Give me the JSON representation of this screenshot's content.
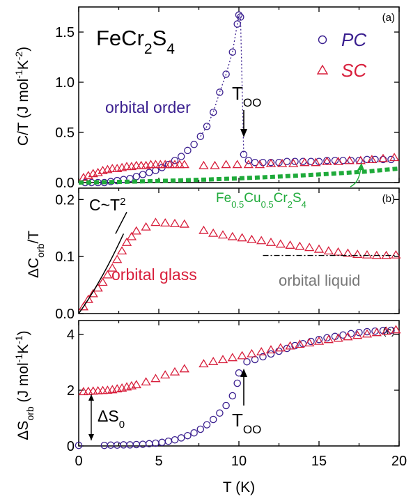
{
  "colors": {
    "pc": "#3a1f8f",
    "sc": "#d81f3c",
    "cu": "#1faa3a",
    "axis": "#000000",
    "gray": "#777777"
  },
  "figure": {
    "xlabel_main": "T (K)",
    "x_ticks": [
      "0",
      "5",
      "10",
      "15",
      "20"
    ],
    "compound": {
      "main": "FeCr",
      "sub1": "2",
      "mid": "S",
      "sub2": "4"
    }
  },
  "chart_data": [
    {
      "type": "scatter",
      "panel": "(a)",
      "ylabel_main": "C/T  (J mol",
      "ylabel_sup1": "-1",
      "ylabel_mid": "K",
      "ylabel_sup2": "-2",
      "ylabel_end": ")",
      "xlim": [
        0,
        20
      ],
      "ylim": [
        0,
        1.75
      ],
      "y_ticks": [
        "0.0",
        "0.5",
        "1.0",
        "1.5"
      ],
      "legend": [
        {
          "name": "PC",
          "marker": "circle"
        },
        {
          "name": "SC",
          "marker": "triangle"
        }
      ],
      "series": [
        {
          "name": "PC",
          "marker": "circle",
          "x": [
            0.4,
            0.8,
            1.2,
            1.6,
            2.0,
            2.4,
            2.8,
            3.2,
            3.6,
            4.0,
            4.4,
            4.8,
            5.2,
            5.6,
            6.0,
            6.4,
            6.8,
            7.2,
            7.6,
            8.0,
            8.4,
            8.8,
            9.2,
            9.6,
            9.9,
            10.0,
            10.1,
            10.3,
            10.6,
            11.0,
            11.5,
            12.0,
            12.5,
            13.0,
            13.5,
            14.0,
            14.5,
            15.0,
            15.5,
            16.0,
            16.5,
            17.0,
            17.5,
            18.0,
            18.5,
            19.0,
            19.5
          ],
          "y": [
            0.0,
            0.0,
            0.0,
            0.0,
            0.01,
            0.02,
            0.03,
            0.04,
            0.06,
            0.08,
            0.1,
            0.12,
            0.15,
            0.18,
            0.22,
            0.26,
            0.32,
            0.38,
            0.46,
            0.56,
            0.7,
            0.9,
            1.08,
            1.3,
            1.58,
            1.67,
            1.65,
            0.28,
            0.22,
            0.2,
            0.2,
            0.2,
            0.2,
            0.21,
            0.21,
            0.21,
            0.21,
            0.21,
            0.22,
            0.22,
            0.22,
            0.22,
            0.22,
            0.23,
            0.23,
            0.23,
            0.23
          ]
        },
        {
          "name": "SC",
          "marker": "triangle",
          "x": [
            0.3,
            0.6,
            0.9,
            1.2,
            1.5,
            1.8,
            2.1,
            2.4,
            2.7,
            3.0,
            3.3,
            3.6,
            3.9,
            4.2,
            4.5,
            4.8,
            5.1,
            5.4,
            5.7,
            6.0,
            6.3,
            6.6,
            7.8,
            8.5,
            9.2,
            9.9,
            10.6,
            11.3,
            12.0,
            12.7,
            13.4,
            14.1,
            14.8,
            15.5,
            16.2,
            16.9,
            17.6,
            18.3,
            19.0,
            19.7
          ],
          "y": [
            0.05,
            0.07,
            0.09,
            0.1,
            0.12,
            0.13,
            0.14,
            0.14,
            0.15,
            0.16,
            0.16,
            0.17,
            0.17,
            0.17,
            0.18,
            0.18,
            0.18,
            0.18,
            0.18,
            0.18,
            0.18,
            0.18,
            0.17,
            0.17,
            0.18,
            0.18,
            0.18,
            0.18,
            0.19,
            0.19,
            0.19,
            0.2,
            0.2,
            0.21,
            0.21,
            0.22,
            0.22,
            0.23,
            0.24,
            0.25
          ]
        },
        {
          "name": "Fe0.5Cu0.5Cr2S4",
          "x": [
            0,
            2,
            4,
            6,
            8,
            10,
            12,
            14,
            16,
            18,
            20
          ],
          "y": [
            0.0,
            0.005,
            0.012,
            0.02,
            0.03,
            0.042,
            0.056,
            0.072,
            0.09,
            0.11,
            0.14
          ]
        }
      ],
      "annotations": {
        "orbital_order": "orbital order",
        "t_oo": {
          "main": "T",
          "sub": "OO"
        },
        "cu_label": {
          "a": "Fe",
          "s1": "0.5",
          "b": "Cu",
          "s2": "0.5",
          "c": "Cr",
          "s3": "2",
          "d": "S",
          "s4": "4"
        }
      }
    },
    {
      "type": "scatter",
      "panel": "(b)",
      "ylabel_main": "ΔC",
      "ylabel_sub": "orb",
      "ylabel_end": "/T",
      "xlim": [
        0,
        20
      ],
      "ylim": [
        0,
        0.22
      ],
      "y_ticks": [
        "0.0",
        "0.1",
        "0.2"
      ],
      "series": [
        {
          "name": "SC",
          "marker": "triangle",
          "x": [
            0.3,
            0.6,
            0.9,
            1.2,
            1.5,
            1.8,
            2.1,
            2.4,
            2.7,
            3.0,
            3.3,
            3.6,
            4.2,
            4.8,
            5.4,
            6.0,
            6.6,
            7.8,
            8.4,
            9.0,
            9.6,
            10.2,
            10.8,
            11.4,
            12.0,
            12.6,
            13.2,
            13.8,
            14.4,
            15.0,
            15.6,
            16.2,
            16.8,
            17.4,
            18.0,
            18.6,
            19.2,
            19.8
          ],
          "y": [
            0.012,
            0.025,
            0.035,
            0.045,
            0.055,
            0.068,
            0.08,
            0.095,
            0.11,
            0.125,
            0.135,
            0.145,
            0.152,
            0.16,
            0.159,
            0.158,
            0.157,
            0.146,
            0.141,
            0.138,
            0.135,
            0.133,
            0.13,
            0.128,
            0.125,
            0.122,
            0.12,
            0.118,
            0.116,
            0.113,
            0.11,
            0.108,
            0.106,
            0.104,
            0.103,
            0.102,
            0.102,
            0.103
          ]
        }
      ],
      "annotations": {
        "power_law": {
          "main": "C~T",
          "sup": "2"
        },
        "orbital_glass": "orbital glass",
        "orbital_liquid": "orbital liquid"
      }
    },
    {
      "type": "scatter",
      "panel": "(c)",
      "ylabel_main": "ΔS",
      "ylabel_sub": "orb",
      "ylabel_mid": " (J mol",
      "ylabel_sup1": "-1",
      "ylabel_k": "K",
      "ylabel_sup2": "-1",
      "ylabel_end": ")",
      "xlim": [
        0,
        20
      ],
      "ylim": [
        0,
        4.5
      ],
      "y_ticks": [
        "0",
        "2",
        "4"
      ],
      "series": [
        {
          "name": "PC",
          "marker": "circle",
          "x": [
            0.0,
            1.6,
            2.0,
            2.4,
            2.8,
            3.2,
            3.6,
            4.0,
            4.4,
            4.8,
            5.2,
            5.6,
            6.0,
            6.4,
            6.8,
            7.2,
            7.6,
            8.0,
            8.4,
            8.8,
            9.2,
            9.6,
            9.9,
            10.0,
            10.5,
            11.0,
            11.5,
            12.0,
            12.5,
            13.0,
            13.5,
            14.0,
            14.5,
            15.0,
            15.5,
            16.0,
            16.5,
            17.0,
            17.5,
            18.0,
            18.5,
            19.0,
            19.5
          ],
          "y": [
            0.02,
            0.02,
            0.03,
            0.03,
            0.04,
            0.04,
            0.05,
            0.06,
            0.08,
            0.1,
            0.13,
            0.17,
            0.22,
            0.29,
            0.37,
            0.47,
            0.6,
            0.76,
            0.95,
            1.18,
            1.45,
            1.8,
            2.25,
            2.62,
            3.02,
            3.1,
            3.2,
            3.3,
            3.4,
            3.5,
            3.6,
            3.67,
            3.75,
            3.82,
            3.88,
            3.93,
            3.98,
            4.03,
            4.07,
            4.1,
            4.12,
            4.14,
            4.15
          ]
        },
        {
          "name": "SC",
          "marker": "triangle",
          "x": [
            0.3,
            0.6,
            0.9,
            1.2,
            1.5,
            1.8,
            2.1,
            2.4,
            2.7,
            3.0,
            3.3,
            3.6,
            4.2,
            4.8,
            5.4,
            6.0,
            6.6,
            7.8,
            8.4,
            9.0,
            9.6,
            10.2,
            10.8,
            11.4,
            12.0,
            12.6,
            13.2,
            13.8,
            14.4,
            15.0,
            15.6,
            16.2,
            16.8,
            17.4,
            18.0,
            18.6,
            19.2,
            19.8
          ],
          "y": [
            1.95,
            1.96,
            1.97,
            1.98,
            1.99,
            2.0,
            2.02,
            2.05,
            2.08,
            2.12,
            2.16,
            2.2,
            2.3,
            2.42,
            2.55,
            2.66,
            2.77,
            2.95,
            3.03,
            3.1,
            3.17,
            3.24,
            3.31,
            3.38,
            3.45,
            3.52,
            3.59,
            3.65,
            3.7,
            3.76,
            3.82,
            3.87,
            3.92,
            3.97,
            4.02,
            4.07,
            4.12,
            4.17
          ]
        }
      ],
      "annotations": {
        "delta_s0": {
          "main": "ΔS",
          "sub": "0"
        },
        "t_oo": {
          "main": "T",
          "sub": "OO"
        }
      }
    }
  ]
}
